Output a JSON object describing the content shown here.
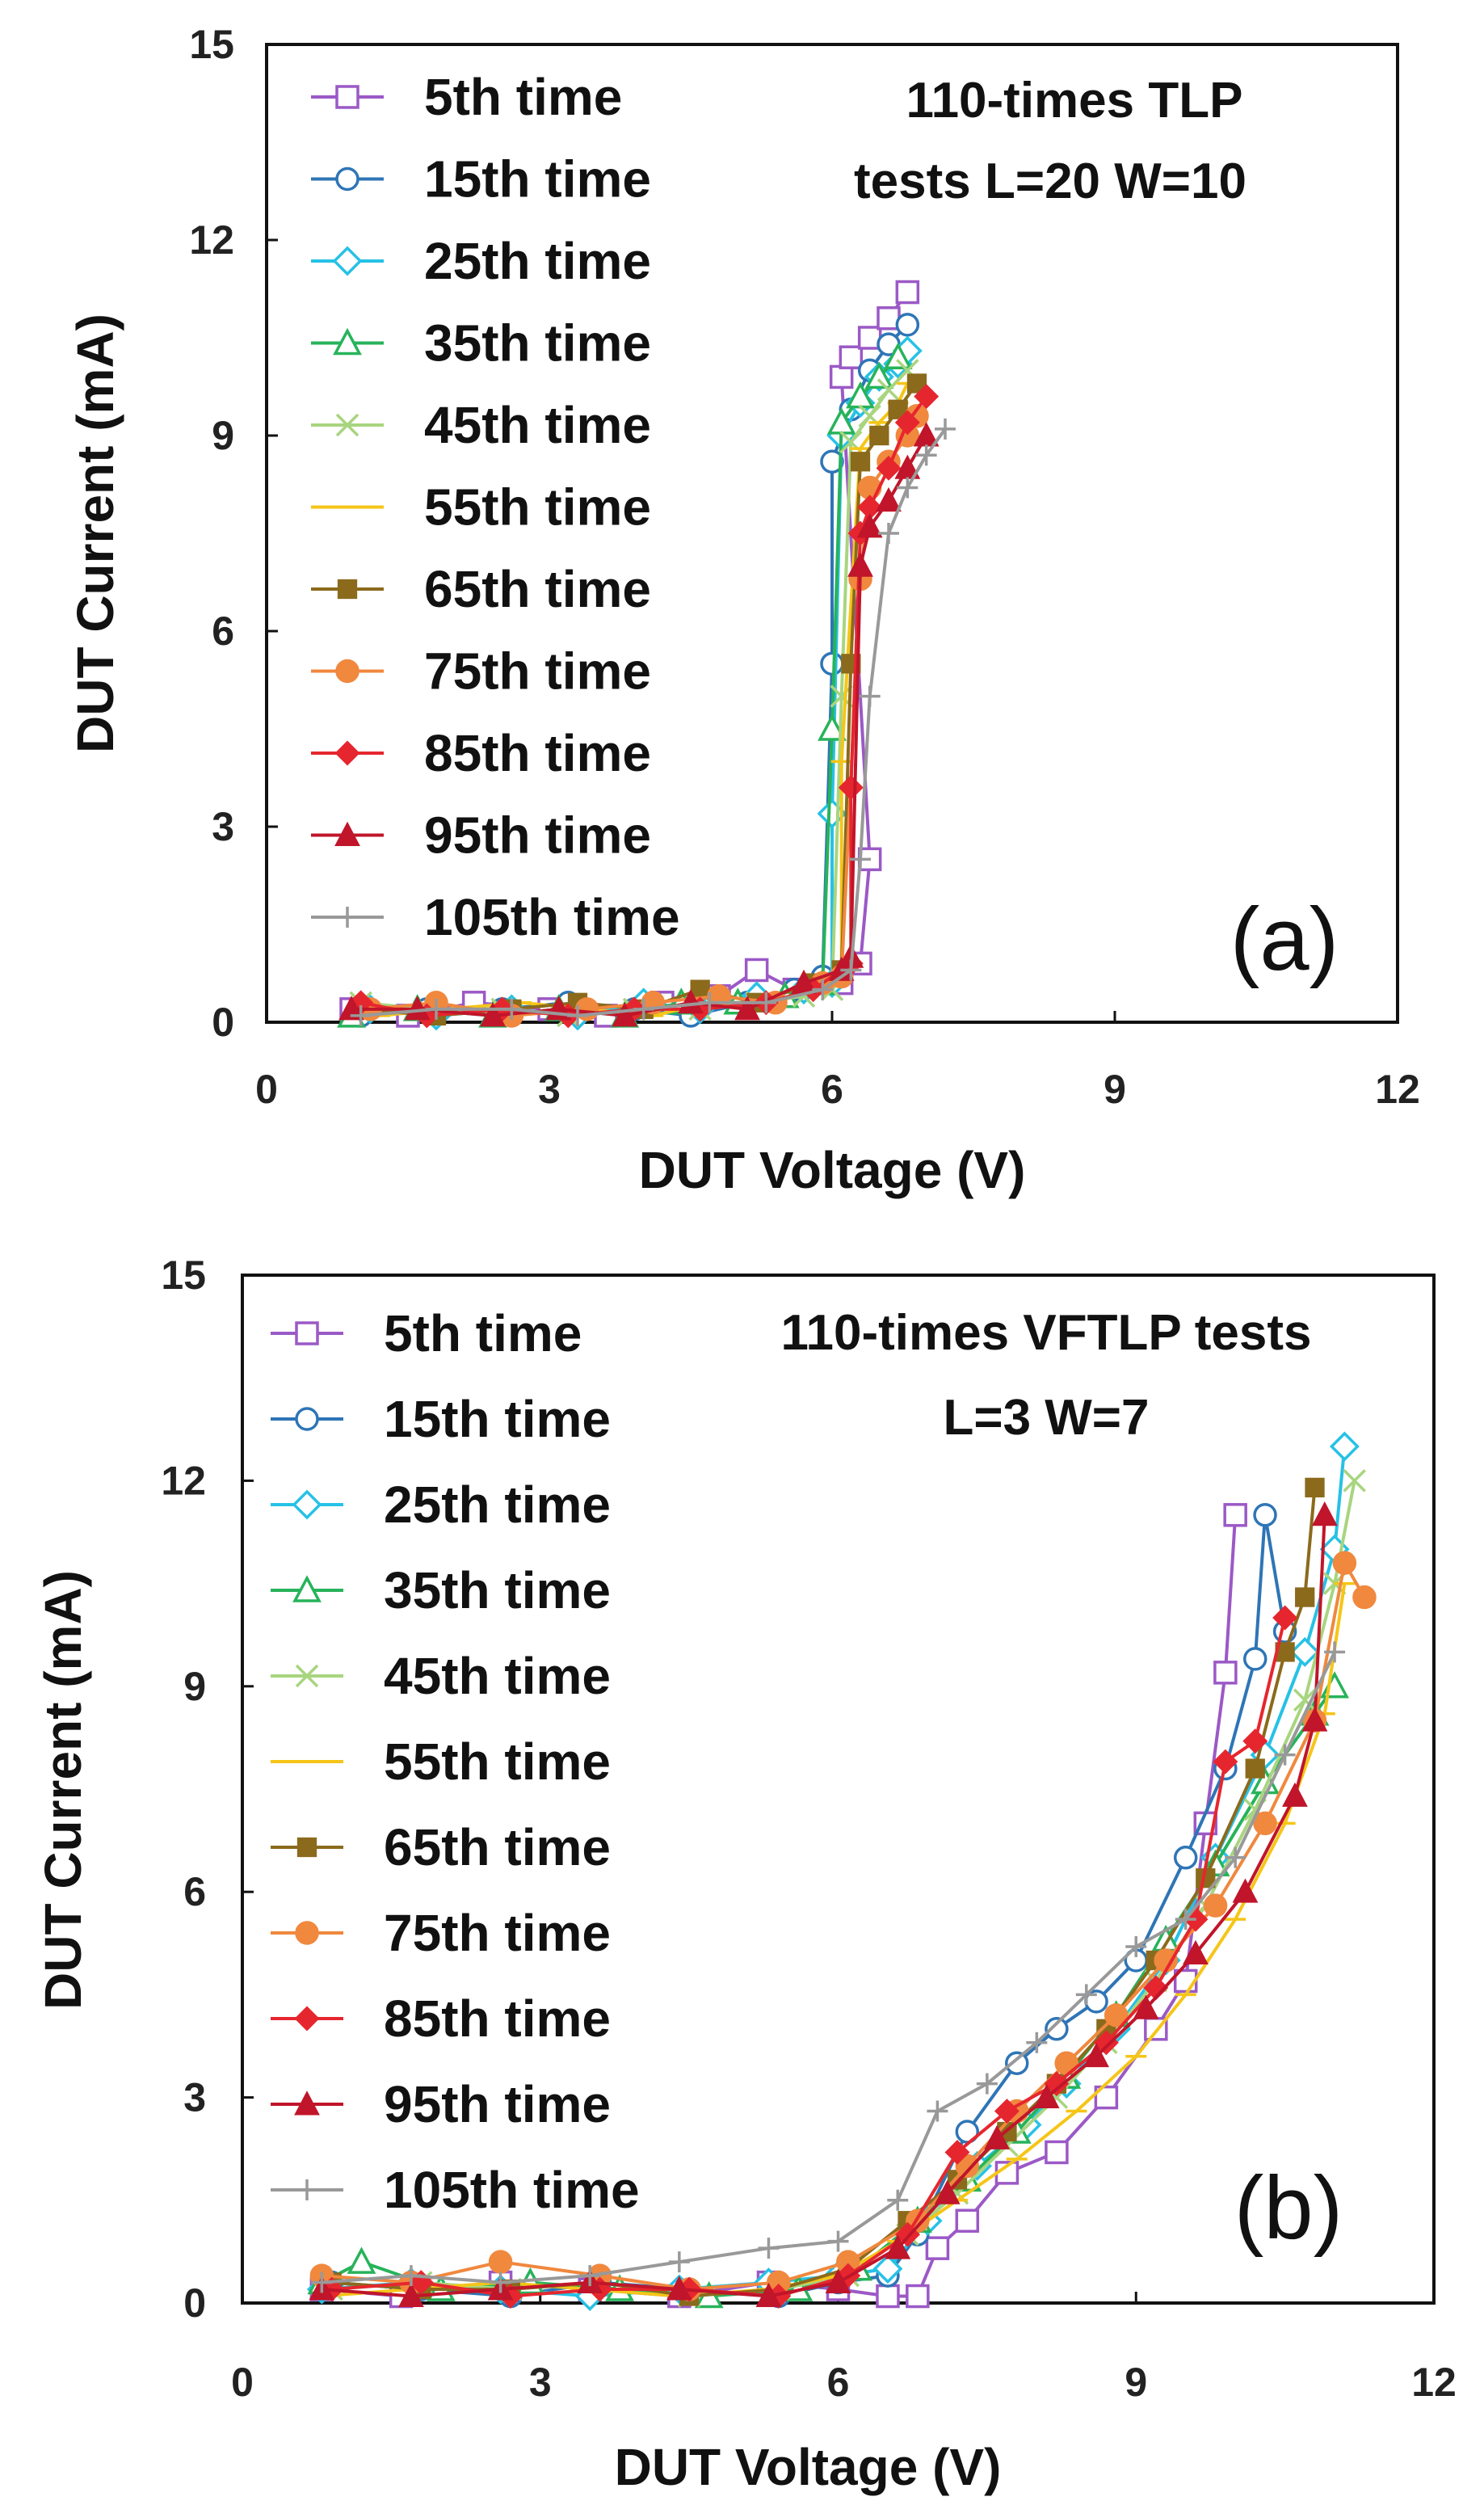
{
  "chart_data": [
    {
      "type": "line",
      "panel": "(a)",
      "annotation": [
        "110-times TLP",
        "tests L=20 W=10"
      ],
      "xlabel": "DUT Voltage (V)",
      "ylabel": "DUT Current (mA)",
      "xlim": [
        0,
        12
      ],
      "ylim": [
        0,
        15
      ],
      "xticks": [
        "0",
        "3",
        "6",
        "9",
        "12"
      ],
      "yticks": [
        "0",
        "3",
        "6",
        "9",
        "12",
        "15"
      ],
      "series": [
        {
          "name": "5th time",
          "color": "#9b59c6",
          "marker": "square-open",
          "x": [
            0.9,
            1.5,
            2.2,
            3.0,
            3.6,
            4.2,
            4.8,
            5.2,
            5.6,
            6.1,
            6.3,
            6.4,
            6.1,
            6.2,
            6.4,
            6.6,
            6.8
          ],
          "y": [
            0.2,
            0.1,
            0.3,
            0.2,
            0.1,
            0.3,
            0.4,
            0.8,
            0.5,
            0.6,
            0.9,
            2.5,
            9.9,
            10.2,
            10.5,
            10.8,
            11.2
          ]
        },
        {
          "name": "15th time",
          "color": "#2e75b6",
          "marker": "circle-open",
          "x": [
            1.0,
            1.7,
            2.5,
            3.2,
            3.9,
            4.5,
            5.1,
            5.6,
            5.9,
            6.0,
            6.0,
            6.2,
            6.4,
            6.6,
            6.8
          ],
          "y": [
            0.1,
            0.2,
            0.2,
            0.3,
            0.2,
            0.1,
            0.3,
            0.5,
            0.7,
            5.5,
            8.6,
            9.4,
            10.0,
            10.4,
            10.7
          ]
        },
        {
          "name": "25th time",
          "color": "#27c1e6",
          "marker": "diamond-open",
          "x": [
            1.1,
            1.8,
            2.6,
            3.3,
            4.0,
            4.6,
            5.2,
            5.7,
            6.0,
            6.0,
            6.1,
            6.3,
            6.5,
            6.7,
            6.8
          ],
          "y": [
            0.2,
            0.1,
            0.2,
            0.1,
            0.3,
            0.2,
            0.4,
            0.5,
            0.6,
            3.2,
            9.0,
            9.5,
            9.9,
            10.1,
            10.3
          ]
        },
        {
          "name": "35th time",
          "color": "#27b35a",
          "marker": "triangle-open",
          "x": [
            0.9,
            1.6,
            2.4,
            3.1,
            3.8,
            4.4,
            5.0,
            5.5,
            5.9,
            6.0,
            6.1,
            6.3,
            6.5,
            6.7
          ],
          "y": [
            0.1,
            0.2,
            0.1,
            0.2,
            0.1,
            0.3,
            0.3,
            0.4,
            0.6,
            4.5,
            9.2,
            9.6,
            9.9,
            10.2
          ]
        },
        {
          "name": "45th time",
          "color": "#a8d57f",
          "marker": "x",
          "x": [
            1.0,
            1.7,
            2.5,
            3.2,
            3.9,
            4.6,
            5.2,
            5.7,
            6.0,
            6.1,
            6.2,
            6.4,
            6.6,
            6.8
          ],
          "y": [
            0.3,
            0.2,
            0.2,
            0.1,
            0.2,
            0.2,
            0.3,
            0.4,
            0.5,
            5.0,
            8.9,
            9.3,
            9.7,
            10.0
          ]
        },
        {
          "name": "55th time",
          "color": "#f5c518",
          "marker": "dash",
          "x": [
            1.2,
            1.9,
            2.7,
            3.4,
            4.1,
            4.7,
            5.3,
            5.8,
            6.1,
            6.1,
            6.3,
            6.5,
            6.7,
            6.8
          ],
          "y": [
            0.1,
            0.2,
            0.3,
            0.2,
            0.1,
            0.3,
            0.3,
            0.5,
            0.7,
            4.0,
            8.8,
            9.2,
            9.5,
            9.8
          ]
        },
        {
          "name": "65th time",
          "color": "#8b6a1c",
          "marker": "square-filled",
          "x": [
            1.0,
            1.8,
            2.6,
            3.3,
            4.0,
            4.6,
            5.2,
            5.8,
            6.1,
            6.2,
            6.3,
            6.5,
            6.7,
            6.9
          ],
          "y": [
            0.2,
            0.1,
            0.2,
            0.3,
            0.2,
            0.5,
            0.3,
            0.6,
            0.8,
            5.5,
            8.6,
            9.0,
            9.4,
            9.8
          ]
        },
        {
          "name": "75th time",
          "color": "#f0883e",
          "marker": "circle-filled",
          "x": [
            1.1,
            1.8,
            2.6,
            3.4,
            4.1,
            4.8,
            5.4,
            5.9,
            6.1,
            6.3,
            6.4,
            6.6,
            6.8,
            6.9
          ],
          "y": [
            0.2,
            0.3,
            0.1,
            0.2,
            0.3,
            0.4,
            0.3,
            0.6,
            0.7,
            6.8,
            8.2,
            8.6,
            9.0,
            9.3
          ]
        },
        {
          "name": "85th time",
          "color": "#e6262e",
          "marker": "diamond-filled",
          "x": [
            1.0,
            1.7,
            2.5,
            3.2,
            3.9,
            4.6,
            5.3,
            5.8,
            6.2,
            6.2,
            6.3,
            6.4,
            6.6,
            6.8,
            7.0
          ],
          "y": [
            0.3,
            0.1,
            0.2,
            0.1,
            0.2,
            0.2,
            0.3,
            0.5,
            0.9,
            3.6,
            7.5,
            7.9,
            8.5,
            9.2,
            9.6
          ]
        },
        {
          "name": "95th time",
          "color": "#c0152a",
          "marker": "triangle-filled",
          "x": [
            0.9,
            1.6,
            2.4,
            3.1,
            3.8,
            4.5,
            5.1,
            5.7,
            6.1,
            6.2,
            6.3,
            6.4,
            6.6,
            6.8,
            7.0
          ],
          "y": [
            0.2,
            0.2,
            0.1,
            0.2,
            0.1,
            0.3,
            0.2,
            0.6,
            0.8,
            1.0,
            7.0,
            7.6,
            8.0,
            8.5,
            9.0
          ]
        },
        {
          "name": "105th time",
          "color": "#999999",
          "marker": "plus",
          "x": [
            1.0,
            1.8,
            2.6,
            3.3,
            4.0,
            4.7,
            5.3,
            5.9,
            6.2,
            6.3,
            6.4,
            6.6,
            6.8,
            7.0,
            7.2
          ],
          "y": [
            0.1,
            0.2,
            0.2,
            0.1,
            0.2,
            0.3,
            0.3,
            0.5,
            0.8,
            2.5,
            5.0,
            7.5,
            8.2,
            8.7,
            9.1
          ]
        }
      ]
    },
    {
      "type": "line",
      "panel": "(b)",
      "annotation": [
        "110-times VFTLP tests",
        "L=3 W=7"
      ],
      "xlabel": "DUT Voltage (V)",
      "ylabel": "DUT Current (mA)",
      "xlim": [
        0,
        12
      ],
      "ylim": [
        0,
        15
      ],
      "xticks": [
        "0",
        "3",
        "6",
        "9",
        "12"
      ],
      "yticks": [
        "0",
        "3",
        "6",
        "9",
        "12",
        "15"
      ],
      "series": [
        {
          "name": "5th time",
          "color": "#9b59c6",
          "marker": "square-open",
          "x": [
            0.8,
            1.6,
            2.6,
            3.5,
            4.4,
            5.3,
            6.0,
            6.5,
            6.8,
            7.0,
            7.3,
            7.7,
            8.2,
            8.7,
            9.2,
            9.5,
            9.7,
            9.9,
            10.0
          ],
          "y": [
            0.2,
            0.1,
            0.3,
            0.2,
            0.1,
            0.3,
            0.2,
            0.1,
            0.1,
            0.8,
            1.2,
            1.9,
            2.2,
            3.0,
            4.0,
            4.7,
            7.0,
            9.2,
            11.5
          ]
        },
        {
          "name": "15th time",
          "color": "#2e75b6",
          "marker": "circle-open",
          "x": [
            0.9,
            1.8,
            2.7,
            3.6,
            4.5,
            5.4,
            6.0,
            6.5,
            6.8,
            7.3,
            7.8,
            8.2,
            8.6,
            9.0,
            9.5,
            9.9,
            10.2,
            10.3,
            10.5
          ],
          "y": [
            0.3,
            0.2,
            0.1,
            0.3,
            0.2,
            0.1,
            0.3,
            0.4,
            1.0,
            2.5,
            3.5,
            4.0,
            4.4,
            5.0,
            6.5,
            7.8,
            9.4,
            11.5,
            9.8
          ]
        },
        {
          "name": "25th time",
          "color": "#27c1e6",
          "marker": "diamond-open",
          "x": [
            0.8,
            1.7,
            2.6,
            3.5,
            4.4,
            5.3,
            6.0,
            6.5,
            6.9,
            7.4,
            7.9,
            8.3,
            8.8,
            9.3,
            9.8,
            10.3,
            10.7,
            11.0,
            11.1
          ],
          "y": [
            0.2,
            0.3,
            0.2,
            0.1,
            0.2,
            0.3,
            0.4,
            0.5,
            1.2,
            2.0,
            2.6,
            3.2,
            4.0,
            5.0,
            6.5,
            8.0,
            9.5,
            11.0,
            12.5
          ]
        },
        {
          "name": "35th time",
          "color": "#27b35a",
          "marker": "triangle-open",
          "x": [
            0.8,
            1.2,
            2.0,
            2.9,
            3.8,
            4.7,
            5.6,
            6.2,
            6.8,
            7.3,
            7.8,
            8.3,
            8.8,
            9.3,
            9.8,
            10.3,
            10.8,
            11.0
          ],
          "y": [
            0.3,
            0.6,
            0.2,
            0.3,
            0.2,
            0.1,
            0.2,
            0.5,
            1.2,
            1.8,
            2.5,
            3.3,
            4.2,
            5.3,
            6.4,
            7.6,
            8.6,
            9.0
          ]
        },
        {
          "name": "45th time",
          "color": "#a8d57f",
          "marker": "x",
          "x": [
            0.9,
            1.8,
            2.7,
            3.6,
            4.5,
            5.4,
            6.1,
            6.7,
            7.2,
            7.7,
            8.2,
            8.7,
            9.2,
            9.7,
            10.2,
            10.7,
            11.0,
            11.2
          ],
          "y": [
            0.2,
            0.3,
            0.2,
            0.3,
            0.1,
            0.2,
            0.4,
            1.0,
            1.6,
            2.3,
            3.0,
            3.8,
            4.7,
            5.8,
            7.2,
            8.8,
            10.5,
            12.0
          ]
        },
        {
          "name": "55th time",
          "color": "#f5c518",
          "marker": "dash",
          "x": [
            0.8,
            1.7,
            2.6,
            3.5,
            4.4,
            5.3,
            6.0,
            6.6,
            7.2,
            7.8,
            8.4,
            9.0,
            9.5,
            10.0,
            10.5,
            10.9,
            11.1
          ],
          "y": [
            0.1,
            0.2,
            0.3,
            0.2,
            0.1,
            0.2,
            0.4,
            0.9,
            1.5,
            2.1,
            2.8,
            3.6,
            4.5,
            5.6,
            7.0,
            8.6,
            10.5
          ]
        },
        {
          "name": "65th time",
          "color": "#8b6a1c",
          "marker": "square-filled",
          "x": [
            0.9,
            1.8,
            2.7,
            3.6,
            4.5,
            5.4,
            6.1,
            6.7,
            7.2,
            7.7,
            8.2,
            8.7,
            9.2,
            9.7,
            10.2,
            10.5,
            10.7,
            10.8
          ],
          "y": [
            0.3,
            0.2,
            0.2,
            0.3,
            0.1,
            0.2,
            0.5,
            1.2,
            1.8,
            2.5,
            3.2,
            4.0,
            5.0,
            6.2,
            7.8,
            9.5,
            10.3,
            11.9
          ]
        },
        {
          "name": "75th time",
          "color": "#f0883e",
          "marker": "circle-filled",
          "x": [
            0.8,
            1.7,
            2.6,
            3.6,
            4.5,
            5.4,
            6.1,
            6.8,
            7.3,
            7.8,
            8.3,
            8.8,
            9.3,
            9.8,
            10.3,
            10.8,
            11.1,
            11.3
          ],
          "y": [
            0.4,
            0.3,
            0.6,
            0.4,
            0.2,
            0.3,
            0.6,
            1.2,
            2.0,
            2.8,
            3.5,
            4.2,
            5.0,
            5.8,
            7.0,
            8.5,
            10.8,
            10.3
          ]
        },
        {
          "name": "85th time",
          "color": "#e6262e",
          "marker": "diamond-filled",
          "x": [
            0.9,
            1.8,
            2.7,
            3.6,
            4.5,
            5.4,
            6.1,
            6.7,
            7.2,
            7.7,
            8.2,
            8.7,
            9.2,
            9.6,
            9.9,
            10.2,
            10.5
          ],
          "y": [
            0.2,
            0.3,
            0.1,
            0.2,
            0.2,
            0.1,
            0.4,
            1.0,
            2.2,
            2.8,
            3.2,
            3.8,
            4.6,
            5.6,
            7.9,
            8.2,
            10.0
          ]
        },
        {
          "name": "95th time",
          "color": "#c0152a",
          "marker": "triangle-filled",
          "x": [
            0.8,
            1.7,
            2.6,
            3.5,
            4.4,
            5.3,
            6.0,
            6.6,
            7.1,
            7.6,
            8.1,
            8.6,
            9.1,
            9.6,
            10.1,
            10.6,
            10.8,
            10.9
          ],
          "y": [
            0.2,
            0.1,
            0.2,
            0.3,
            0.2,
            0.1,
            0.3,
            0.8,
            1.6,
            2.4,
            3.0,
            3.6,
            4.3,
            5.1,
            6.0,
            7.4,
            8.5,
            11.5
          ]
        },
        {
          "name": "105th time",
          "color": "#999999",
          "marker": "plus",
          "x": [
            0.8,
            1.7,
            2.6,
            3.5,
            4.4,
            5.3,
            6.0,
            6.6,
            7.0,
            7.5,
            8.0,
            8.5,
            9.0,
            9.5,
            10.0,
            10.5,
            11.0
          ],
          "y": [
            0.3,
            0.4,
            0.3,
            0.4,
            0.6,
            0.8,
            0.9,
            1.5,
            2.8,
            3.2,
            3.8,
            4.5,
            5.2,
            5.6,
            6.5,
            8.0,
            9.5
          ]
        }
      ]
    }
  ]
}
